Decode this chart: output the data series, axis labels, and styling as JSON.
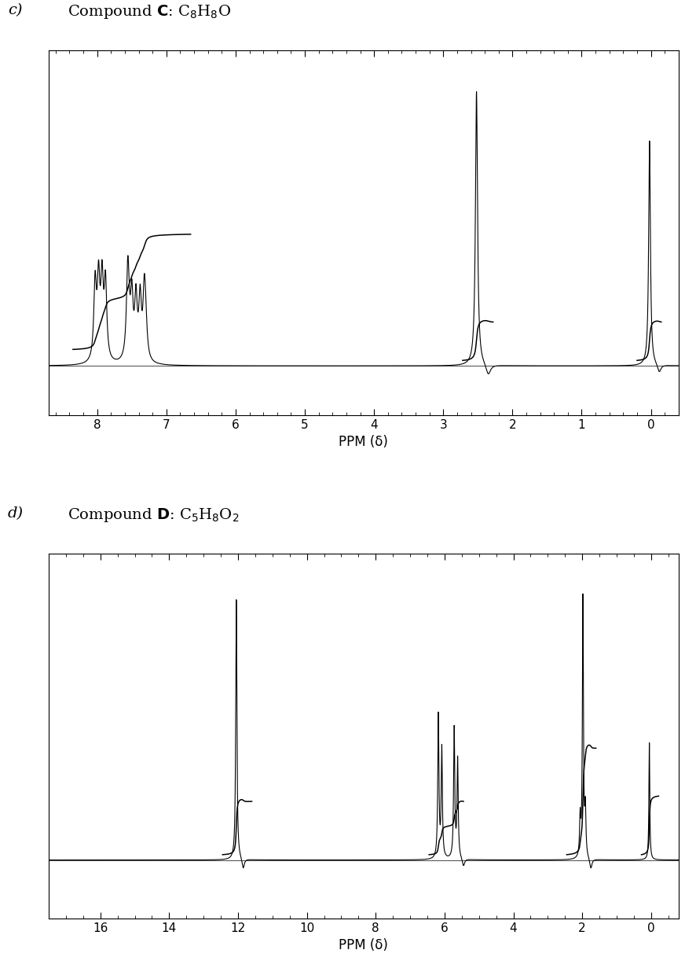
{
  "panel_c": {
    "xlabel": "PPM (δ)",
    "xmin": -0.4,
    "xmax": 8.7,
    "ylim_min": -0.18,
    "ylim_max": 1.15,
    "xticks_major": [
      0,
      1,
      2,
      3,
      4,
      5,
      6,
      7,
      8
    ],
    "xticks_minor_step": 0.2
  },
  "panel_d": {
    "xlabel": "PPM (δ)",
    "xmin": -0.8,
    "xmax": 17.5,
    "ylim_min": -0.22,
    "ylim_max": 1.15,
    "xticks_major": [
      0,
      2,
      4,
      6,
      8,
      10,
      12,
      14,
      16
    ],
    "xticks_minor_step": 0.5
  },
  "bg_color": "#ffffff",
  "line_color": "#000000",
  "font_size_title": 14,
  "font_size_axis": 12
}
